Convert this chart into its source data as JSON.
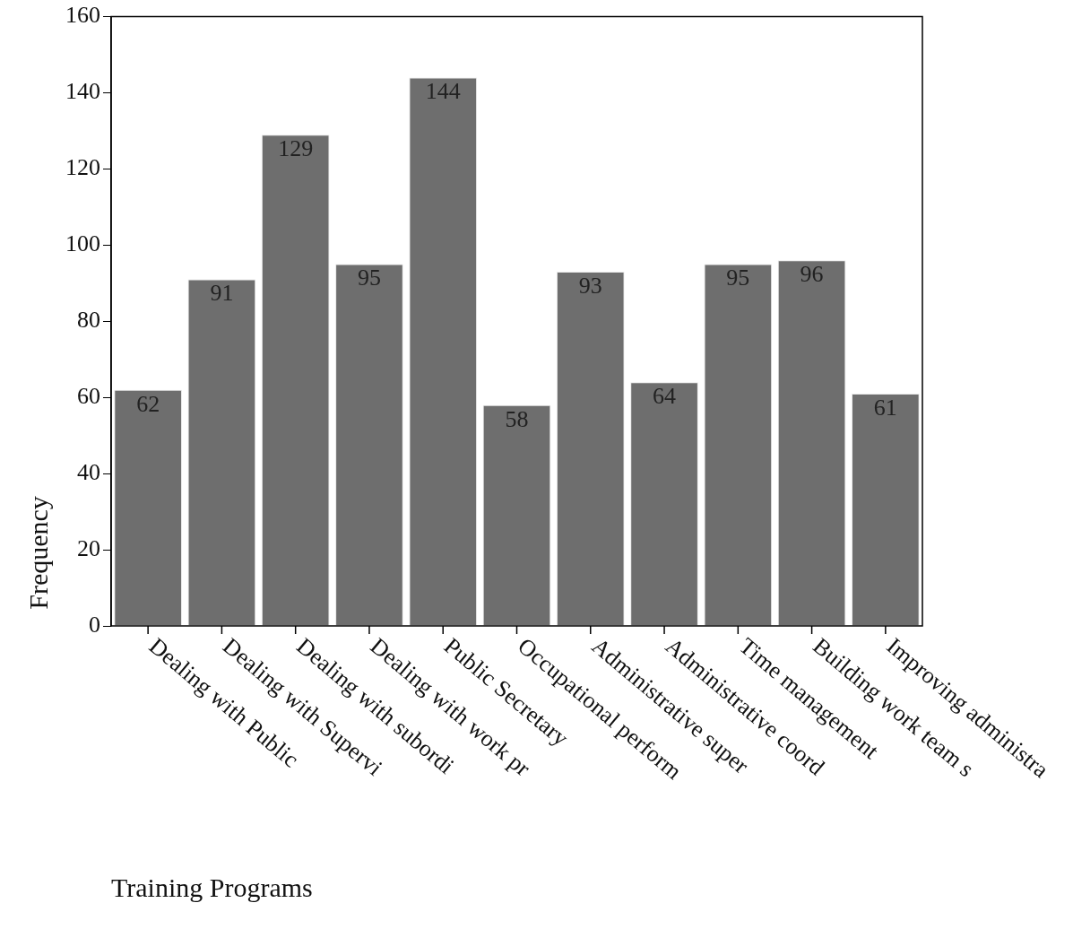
{
  "chart_data": {
    "type": "bar",
    "xlabel": "Training Programs",
    "ylabel": "Frequency",
    "categories": [
      "Dealing with Public",
      "Dealing with Supervi",
      "Dealing with subordi",
      "Dealing with work pr",
      "Public Secretary",
      "Occupational perform",
      "Administrative super",
      "Administrative coord",
      "Time management",
      "Building work team s",
      "Improving administra"
    ],
    "values": [
      62,
      91,
      129,
      95,
      144,
      58,
      93,
      64,
      95,
      96,
      61
    ],
    "color": "#6e6e6e",
    "ylim": [
      0,
      160
    ],
    "yticks": [
      0,
      20,
      40,
      60,
      80,
      100,
      120,
      140,
      160
    ],
    "grid": false,
    "legend": false,
    "data_labels": true
  }
}
